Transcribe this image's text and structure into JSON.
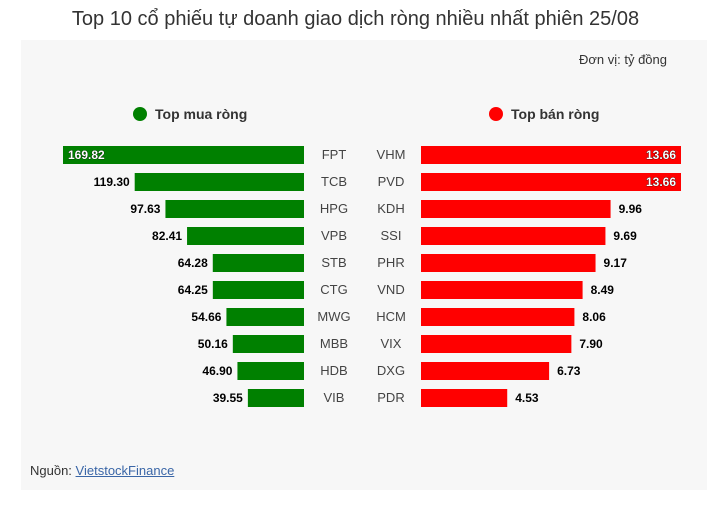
{
  "header": {
    "title": "Top 10 cổ phiếu tự doanh giao dịch ròng nhiều nhất phiên 25/08",
    "unit": "Đơn vị: tỷ đồng"
  },
  "legend": {
    "buy_label": "Top mua ròng",
    "sell_label": "Top bán ròng"
  },
  "source": {
    "prefix": "Nguồn: ",
    "link_text": "VietstockFinance"
  },
  "colors": {
    "buy": "#008000",
    "sell": "#ff0000"
  },
  "chart_data": [
    {
      "type": "bar",
      "series": [
        {
          "name": "Top mua ròng",
          "values": [
            169.82,
            119.3,
            97.63,
            82.41,
            64.28,
            64.25,
            54.66,
            50.16,
            46.9,
            39.55
          ]
        }
      ],
      "categories": [
        "FPT",
        "TCB",
        "HPG",
        "VPB",
        "STB",
        "CTG",
        "MWG",
        "MBB",
        "HDB",
        "VIB"
      ],
      "labels": [
        "169.82",
        "119.30",
        "97.63",
        "82.41",
        "64.28",
        "64.25",
        "54.66",
        "50.16",
        "46.90",
        "39.55"
      ],
      "orientation": "horizontal",
      "direction": "leftward"
    },
    {
      "type": "bar",
      "series": [
        {
          "name": "Top bán ròng",
          "values": [
            13.66,
            13.66,
            9.96,
            9.69,
            9.17,
            8.49,
            8.06,
            7.9,
            6.73,
            4.53
          ]
        }
      ],
      "categories": [
        "VHM",
        "PVD",
        "KDH",
        "SSI",
        "PHR",
        "VND",
        "HCM",
        "VIX",
        "DXG",
        "PDR"
      ],
      "labels": [
        "13.66",
        "13.66",
        "9.96",
        "9.69",
        "9.17",
        "8.49",
        "8.06",
        "7.90",
        "6.73",
        "4.53"
      ],
      "orientation": "horizontal",
      "direction": "rightward"
    }
  ]
}
